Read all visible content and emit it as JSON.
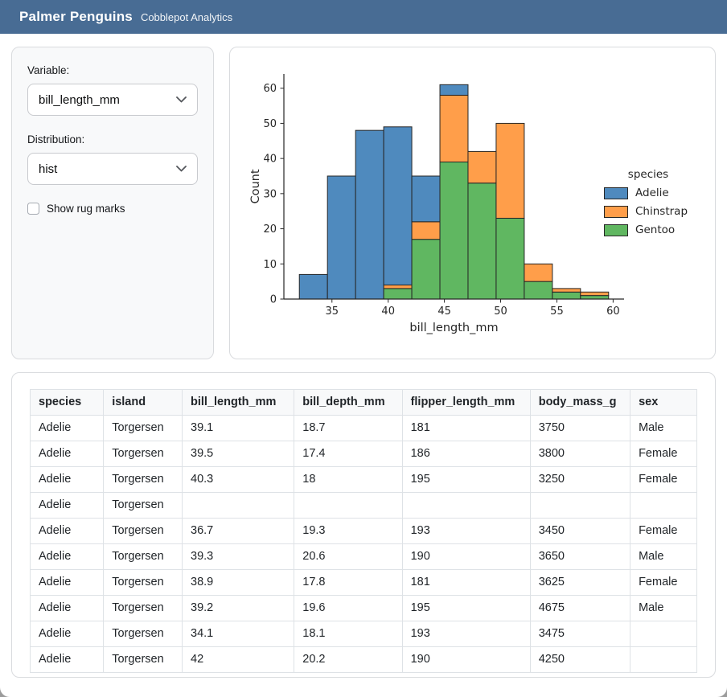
{
  "header": {
    "title": "Palmer Penguins",
    "subtitle": "Cobblepot Analytics"
  },
  "colors": {
    "header_bg": "#486c94",
    "sidebar_bg": "#f8f9fa",
    "card_border": "#d9dbde",
    "table_border": "#dee2e6",
    "adelie_blue": "#4f8abe",
    "chinstrap_orange": "#ff9e4a",
    "gentoo_green": "#60b761"
  },
  "icons": {
    "variable_select_chevron": "chevron-down",
    "distribution_select_chevron": "chevron-down"
  },
  "sidebar": {
    "variable_label": "Variable:",
    "variable_value": "bill_length_mm",
    "distribution_label": "Distribution:",
    "distribution_value": "hist",
    "rug_checkbox_label": "Show rug marks",
    "rug_checked": false
  },
  "chart_data": {
    "type": "bar",
    "subtype": "stacked-histogram",
    "title": "",
    "xlabel": "bill_length_mm",
    "ylabel": "Count",
    "bin_edges": [
      32.1,
      34.6,
      37.1,
      39.6,
      42.1,
      44.6,
      47.1,
      49.6,
      52.1,
      54.6,
      57.1,
      59.6
    ],
    "series": [
      {
        "name": "Adelie",
        "color": "#4f8abe",
        "values": [
          7,
          35,
          48,
          45,
          13,
          3,
          0,
          0,
          0,
          0,
          0
        ]
      },
      {
        "name": "Chinstrap",
        "color": "#ff9e4a",
        "values": [
          0,
          0,
          0,
          1,
          5,
          19,
          9,
          27,
          5,
          1,
          1
        ]
      },
      {
        "name": "Gentoo",
        "color": "#60b761",
        "values": [
          0,
          0,
          0,
          3,
          17,
          39,
          33,
          23,
          5,
          2,
          1
        ]
      }
    ],
    "stack_order_bottom_to_top": [
      "Gentoo",
      "Chinstrap",
      "Adelie"
    ],
    "totals_per_bin": [
      7,
      35,
      48,
      49,
      35,
      61,
      42,
      50,
      10,
      3,
      2
    ],
    "xticks": [
      35,
      40,
      45,
      50,
      55,
      60
    ],
    "yticks": [
      0,
      10,
      20,
      30,
      40,
      50,
      60
    ],
    "xlim": [
      30.725,
      60.975
    ],
    "ylim": [
      0,
      64.05
    ],
    "legend_title": "species",
    "legend_position": "right",
    "grid": false,
    "bar_edge_color": "#262626"
  },
  "table": {
    "columns": [
      "species",
      "island",
      "bill_length_mm",
      "bill_depth_mm",
      "flipper_length_mm",
      "body_mass_g",
      "sex"
    ],
    "col_widths_pct": [
      11,
      11.8,
      16.8,
      16.2,
      19.2,
      15,
      10
    ],
    "rows": [
      [
        "Adelie",
        "Torgersen",
        "39.1",
        "18.7",
        "181",
        "3750",
        "Male"
      ],
      [
        "Adelie",
        "Torgersen",
        "39.5",
        "17.4",
        "186",
        "3800",
        "Female"
      ],
      [
        "Adelie",
        "Torgersen",
        "40.3",
        "18",
        "195",
        "3250",
        "Female"
      ],
      [
        "Adelie",
        "Torgersen",
        "",
        "",
        "",
        "",
        ""
      ],
      [
        "Adelie",
        "Torgersen",
        "36.7",
        "19.3",
        "193",
        "3450",
        "Female"
      ],
      [
        "Adelie",
        "Torgersen",
        "39.3",
        "20.6",
        "190",
        "3650",
        "Male"
      ],
      [
        "Adelie",
        "Torgersen",
        "38.9",
        "17.8",
        "181",
        "3625",
        "Female"
      ],
      [
        "Adelie",
        "Torgersen",
        "39.2",
        "19.6",
        "195",
        "4675",
        "Male"
      ],
      [
        "Adelie",
        "Torgersen",
        "34.1",
        "18.1",
        "193",
        "3475",
        ""
      ],
      [
        "Adelie",
        "Torgersen",
        "42",
        "20.2",
        "190",
        "4250",
        ""
      ]
    ]
  }
}
